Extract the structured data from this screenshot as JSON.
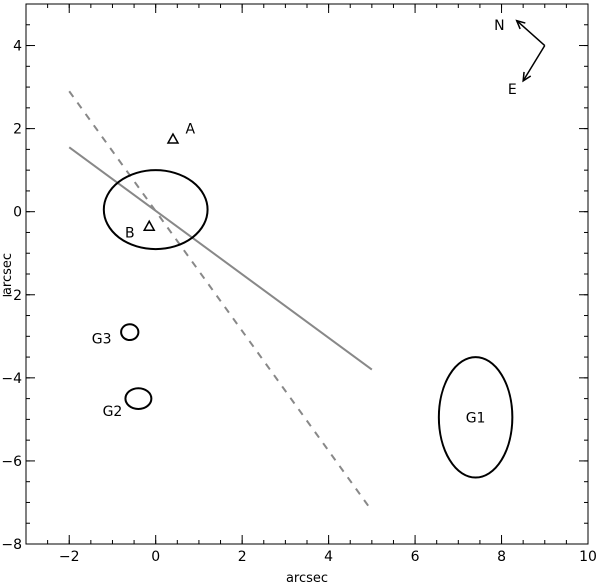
{
  "chart_data": {
    "type": "scatter",
    "xlabel": "arcsec",
    "ylabel": "arcsec",
    "xlim": [
      -3,
      10
    ],
    "ylim": [
      -8,
      5
    ],
    "x_ticks": [
      -2,
      0,
      2,
      4,
      6,
      8,
      10
    ],
    "x_tick_labels": [
      "−2",
      "0",
      "2",
      "4",
      "6",
      "8",
      "10"
    ],
    "y_ticks": [
      -8,
      -6,
      -4,
      -2,
      0,
      2,
      4
    ],
    "y_tick_labels": [
      "−8",
      "−6",
      "−4",
      "−2",
      "0",
      "2",
      "4"
    ],
    "minor_tick_step": 0.5,
    "grid": false,
    "points": [
      {
        "label": "A",
        "marker": "triangle",
        "x": 0.4,
        "y": 1.75,
        "label_x": 0.8,
        "label_y": 2.0
      },
      {
        "label": "B",
        "marker": "triangle",
        "x": -0.15,
        "y": -0.35,
        "label_x": -0.6,
        "label_y": -0.5
      }
    ],
    "ellipses": [
      {
        "name": "central",
        "label": "",
        "cx": 0.0,
        "cy": 0.05,
        "rx": 1.2,
        "ry": 0.95,
        "angle": 0
      },
      {
        "name": "G1",
        "label": "G1",
        "cx": 7.4,
        "cy": -4.95,
        "rx": 0.85,
        "ry": 1.45,
        "angle": 0
      },
      {
        "name": "G2",
        "label": "G2",
        "cx": -0.4,
        "cy": -4.5,
        "rx": 0.3,
        "ry": 0.25,
        "angle": 0,
        "label_x": -1.0,
        "label_y": -4.8
      },
      {
        "name": "G3",
        "label": "G3",
        "cx": -0.6,
        "cy": -2.9,
        "rx": 0.2,
        "ry": 0.19,
        "angle": 0,
        "label_x": -1.25,
        "label_y": -3.05
      }
    ],
    "lines": [
      {
        "name": "solid-line",
        "style": "solid",
        "color": "#888888",
        "x": [
          -2.0,
          5.0
        ],
        "y": [
          1.55,
          -3.8
        ]
      },
      {
        "name": "dashed-line",
        "style": "dashed",
        "color": "#888888",
        "x": [
          -2.0,
          5.0
        ],
        "y": [
          2.9,
          -7.2
        ]
      }
    ],
    "compass": {
      "north_label": "N",
      "east_label": "E",
      "origin": [
        9.0,
        4.0
      ],
      "north_tip": [
        8.35,
        4.6
      ],
      "east_tip": [
        8.5,
        3.15
      ],
      "north_label_pos": [
        7.95,
        4.5
      ],
      "east_label_pos": [
        8.25,
        2.95
      ]
    },
    "colors": {
      "ink": "#000000",
      "line": "#888888"
    }
  }
}
